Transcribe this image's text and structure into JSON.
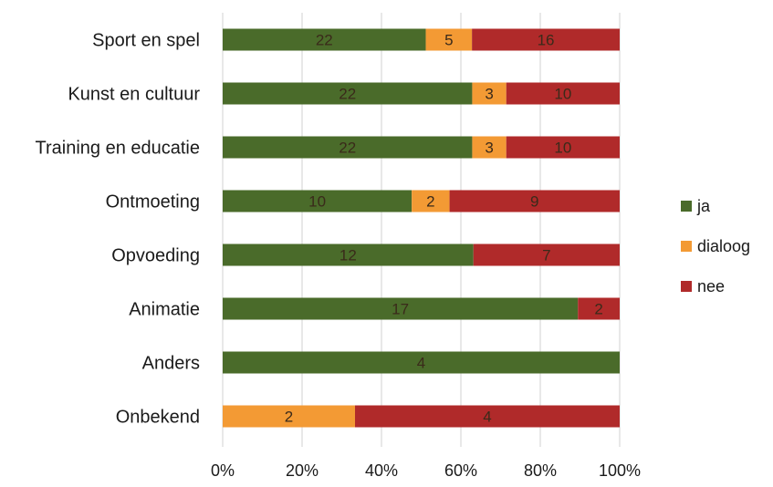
{
  "chart_data": {
    "type": "bar",
    "orientation": "horizontal",
    "stacked": "percent",
    "categories": [
      "Sport en spel",
      "Kunst en cultuur",
      "Training en educatie",
      "Ontmoeting",
      "Opvoeding",
      "Animatie",
      "Anders",
      "Onbekend"
    ],
    "series": [
      {
        "name": "ja",
        "values": [
          22,
          22,
          22,
          10,
          12,
          17,
          4,
          0
        ],
        "color": "#4a6b2a"
      },
      {
        "name": "dialoog",
        "values": [
          5,
          3,
          3,
          2,
          0,
          0,
          0,
          2
        ],
        "color": "#f39a34"
      },
      {
        "name": "nee",
        "values": [
          16,
          10,
          10,
          9,
          7,
          2,
          0,
          4
        ],
        "color": "#b02a2a"
      }
    ],
    "x_ticks": [
      "0%",
      "20%",
      "40%",
      "60%",
      "80%",
      "100%"
    ],
    "xlim": [
      0,
      100
    ],
    "grid": true,
    "legend_position": "right",
    "title": "",
    "xlabel": "",
    "ylabel": "",
    "colors": {
      "label_text": "#1a1a1a",
      "value_text": "#3a2a1a",
      "grid": "#d9d9d9"
    }
  }
}
